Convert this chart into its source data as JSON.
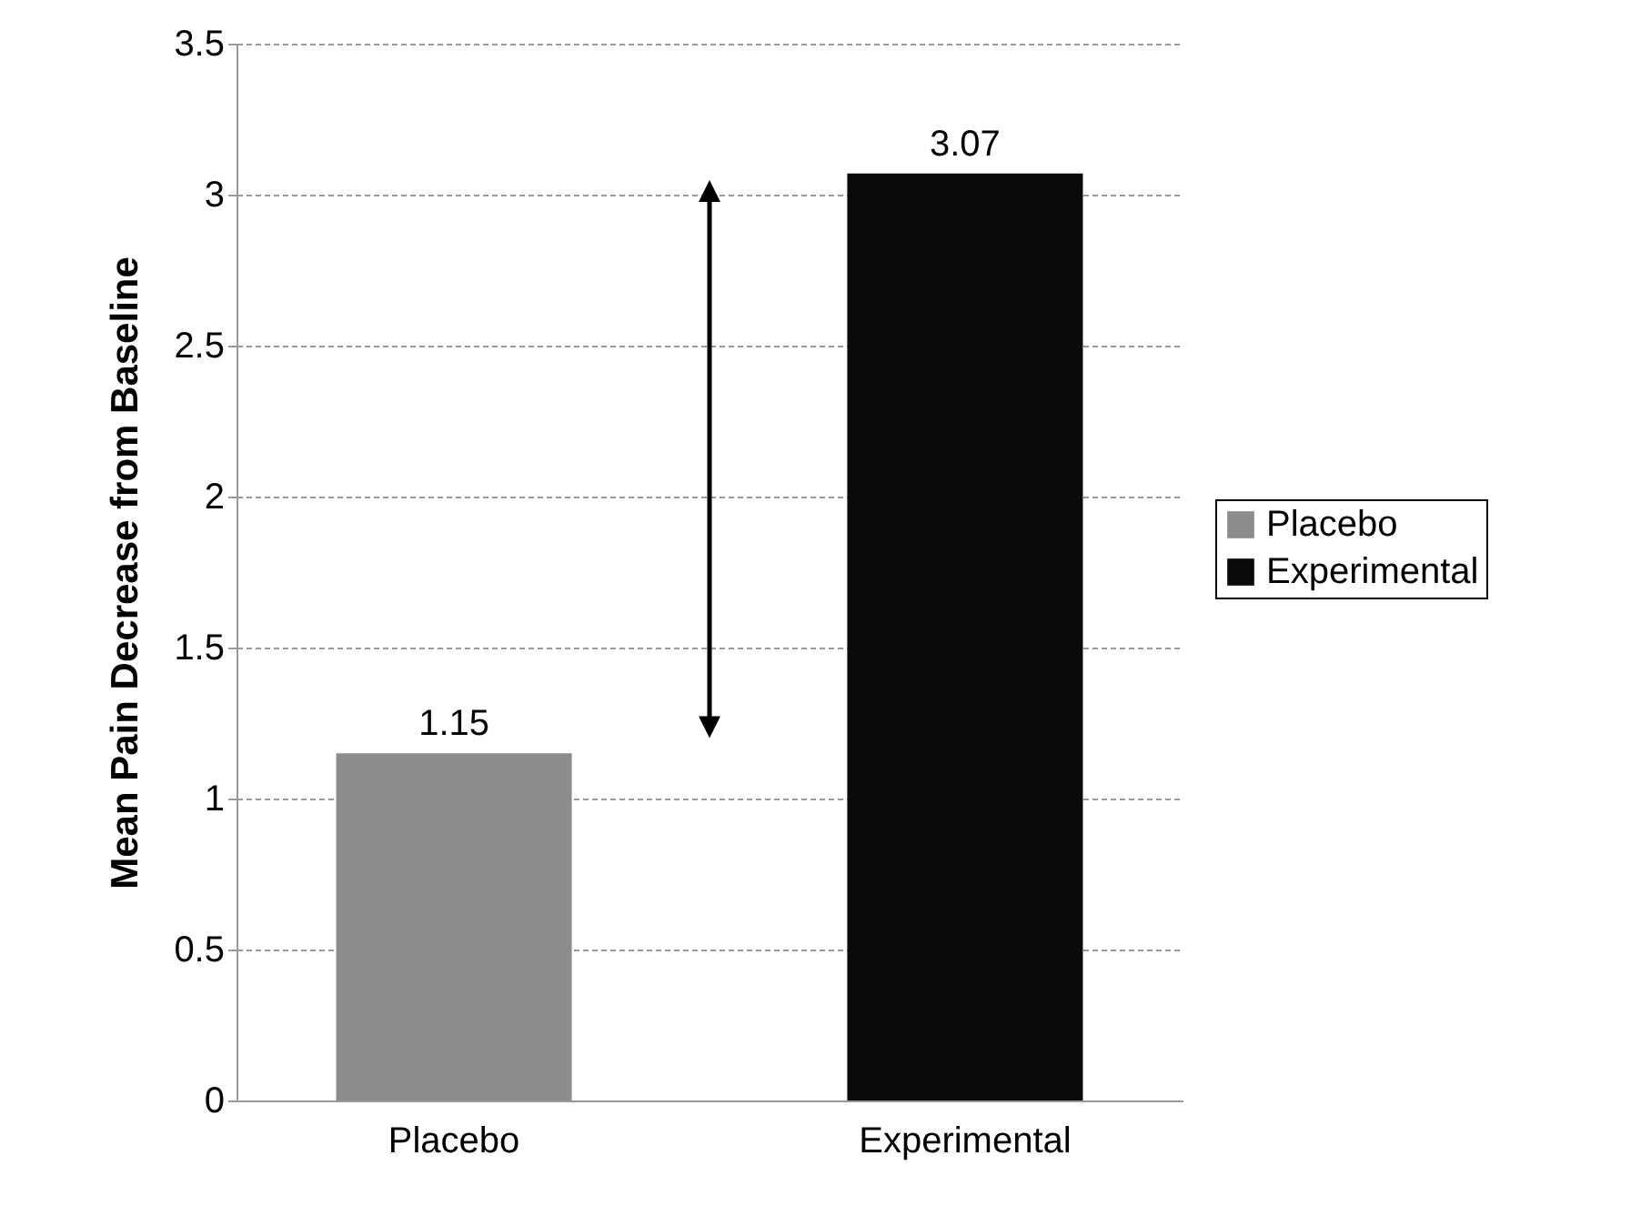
{
  "chart_data": {
    "type": "bar",
    "ylabel": "Mean Pain Decrease from Baseline",
    "categories": [
      "Placebo",
      "Experimental"
    ],
    "series": [
      {
        "name": "Placebo",
        "color": "#8c8c8c",
        "values": [
          1.15,
          null
        ]
      },
      {
        "name": "Experimental",
        "color": "#0a0a0a",
        "values": [
          null,
          3.07
        ]
      }
    ],
    "ylim": [
      0,
      3.5
    ],
    "yticks": [
      0,
      0.5,
      1,
      1.5,
      2,
      2.5,
      3,
      3.5
    ],
    "grid": "y",
    "legend": "right",
    "data_labels": true
  }
}
